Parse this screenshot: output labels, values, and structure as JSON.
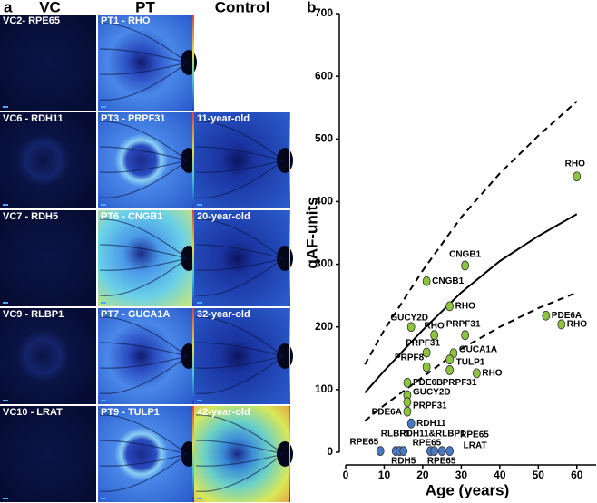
{
  "panel_a": {
    "label": "a",
    "columns": [
      "VC",
      "PT",
      "Control"
    ],
    "rows": [
      [
        "VC2- RPE65",
        "PT1 - RHO",
        null
      ],
      [
        "VC6 - RDH11",
        "PT3 - PRPF31",
        "11-year-old"
      ],
      [
        "VC7 - RDH5",
        "PT6 - CNGB1",
        "20-year-old"
      ],
      [
        "VC9 - RLBP1",
        "PT7 - GUCA1A",
        "32-year-old"
      ],
      [
        "VC10 - LRAT",
        "PT9 - TULP1",
        "42-year-old"
      ]
    ]
  },
  "chart_data": {
    "type": "scatter",
    "panel_label": "b",
    "xlabel": "Age (years)",
    "ylabel": "qAF-units",
    "xlim": [
      0,
      65
    ],
    "ylim": [
      0,
      700
    ],
    "xticks": [
      0,
      10,
      20,
      30,
      40,
      50,
      60
    ],
    "yticks": [
      0,
      100,
      200,
      300,
      400,
      500,
      600,
      700
    ],
    "curves": [
      {
        "style": "solid",
        "color": "#000000",
        "x": [
          5,
          10,
          20,
          30,
          40,
          50,
          60
        ],
        "values": [
          95,
          130,
          195,
          255,
          305,
          345,
          380
        ]
      },
      {
        "style": "dashed",
        "color": "#000000",
        "x": [
          5,
          10,
          20,
          30,
          40,
          50,
          60
        ],
        "values": [
          140,
          195,
          290,
          375,
          445,
          505,
          560
        ]
      },
      {
        "style": "dashed",
        "color": "#000000",
        "x": [
          5,
          10,
          20,
          30,
          40,
          50,
          60
        ],
        "values": [
          50,
          75,
          120,
          165,
          200,
          230,
          255
        ]
      }
    ],
    "series": [
      {
        "color": "#8cc43f",
        "x": [
          60,
          31,
          21,
          27,
          17,
          23,
          31,
          21,
          28,
          27,
          21,
          27,
          34,
          16,
          16,
          16,
          16,
          52,
          56
        ],
        "values": [
          440,
          298,
          273,
          233,
          200,
          187,
          187,
          159,
          158,
          148,
          136,
          131,
          126,
          111,
          91,
          80,
          65,
          218,
          204
        ],
        "labels": [
          "RHO",
          "CNGB1",
          "CNGB1",
          "RHO",
          "GUCY2D",
          "RHO",
          "PRPF31",
          "PRPF31",
          "GUCA1A",
          "TULP1",
          "PRPF8",
          "PRPF31",
          "RHO",
          "PDE6B",
          "GUCY2D",
          "PRPF31",
          "PDE6A",
          "PDE6A",
          "RHO"
        ]
      },
      {
        "color": "#4a78c2",
        "x": [
          17,
          9,
          13,
          14,
          15,
          22,
          23,
          25,
          27
        ],
        "values": [
          46,
          2,
          2,
          2,
          2,
          2,
          2,
          2,
          2
        ],
        "labels": [
          "RDH11",
          "RPE65",
          "RLBP1",
          "RDH11&RLBP1",
          "RDH5",
          "RPE65",
          "RPE65",
          "RPE65",
          "LRAT"
        ]
      }
    ]
  }
}
